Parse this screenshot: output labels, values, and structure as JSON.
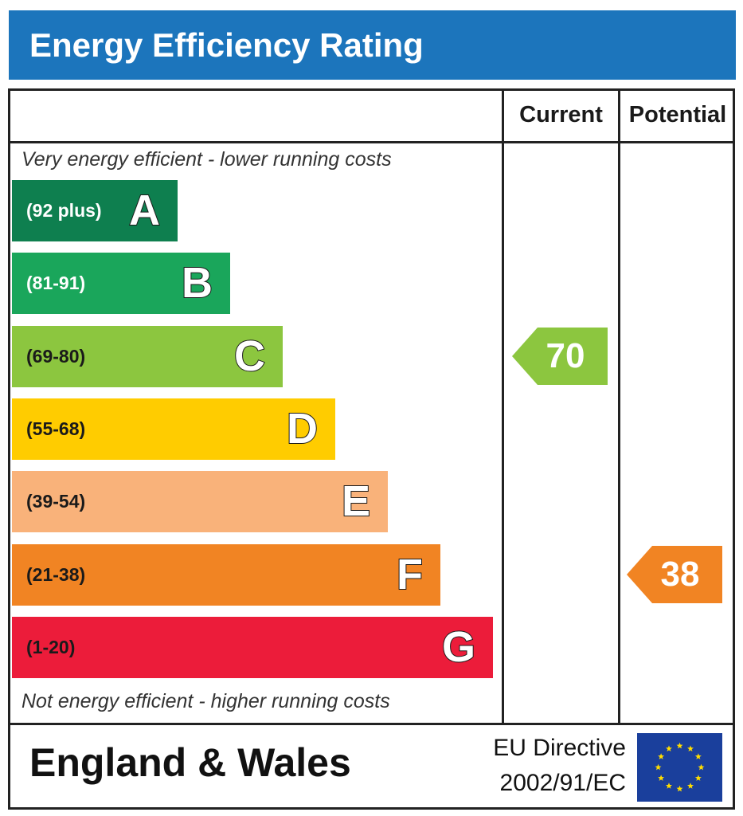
{
  "title": "Energy Efficiency Rating",
  "columns": {
    "current": "Current",
    "potential": "Potential"
  },
  "captions": {
    "top": "Very energy efficient - lower running costs",
    "bottom": "Not energy efficient - higher running costs"
  },
  "footer": {
    "country": "England & Wales",
    "directive_line1": "EU Directive",
    "directive_line2": "2002/91/EC"
  },
  "icons": {
    "flag": "eu-flag-icon"
  },
  "chart_data": {
    "type": "bar",
    "bands": [
      {
        "letter": "A",
        "range": "(92 plus)",
        "color": "#0e7f4f",
        "text_color": "#ffffff"
      },
      {
        "letter": "B",
        "range": "(81-91)",
        "color": "#1aa65b",
        "text_color": "#ffffff"
      },
      {
        "letter": "C",
        "range": "(69-80)",
        "color": "#8cc63f",
        "text_color": "#1a1a1a"
      },
      {
        "letter": "D",
        "range": "(55-68)",
        "color": "#ffcc00",
        "text_color": "#1a1a1a"
      },
      {
        "letter": "E",
        "range": "(39-54)",
        "color": "#f9b27a",
        "text_color": "#1a1a1a"
      },
      {
        "letter": "F",
        "range": "(21-38)",
        "color": "#f18423",
        "text_color": "#1a1a1a"
      },
      {
        "letter": "G",
        "range": "(1-20)",
        "color": "#ec1c3a",
        "text_color": "#1a1a1a"
      }
    ],
    "current": {
      "value": 70,
      "band": "C",
      "color": "#8cc63f"
    },
    "potential": {
      "value": 38,
      "band": "F",
      "color": "#f18423"
    }
  }
}
